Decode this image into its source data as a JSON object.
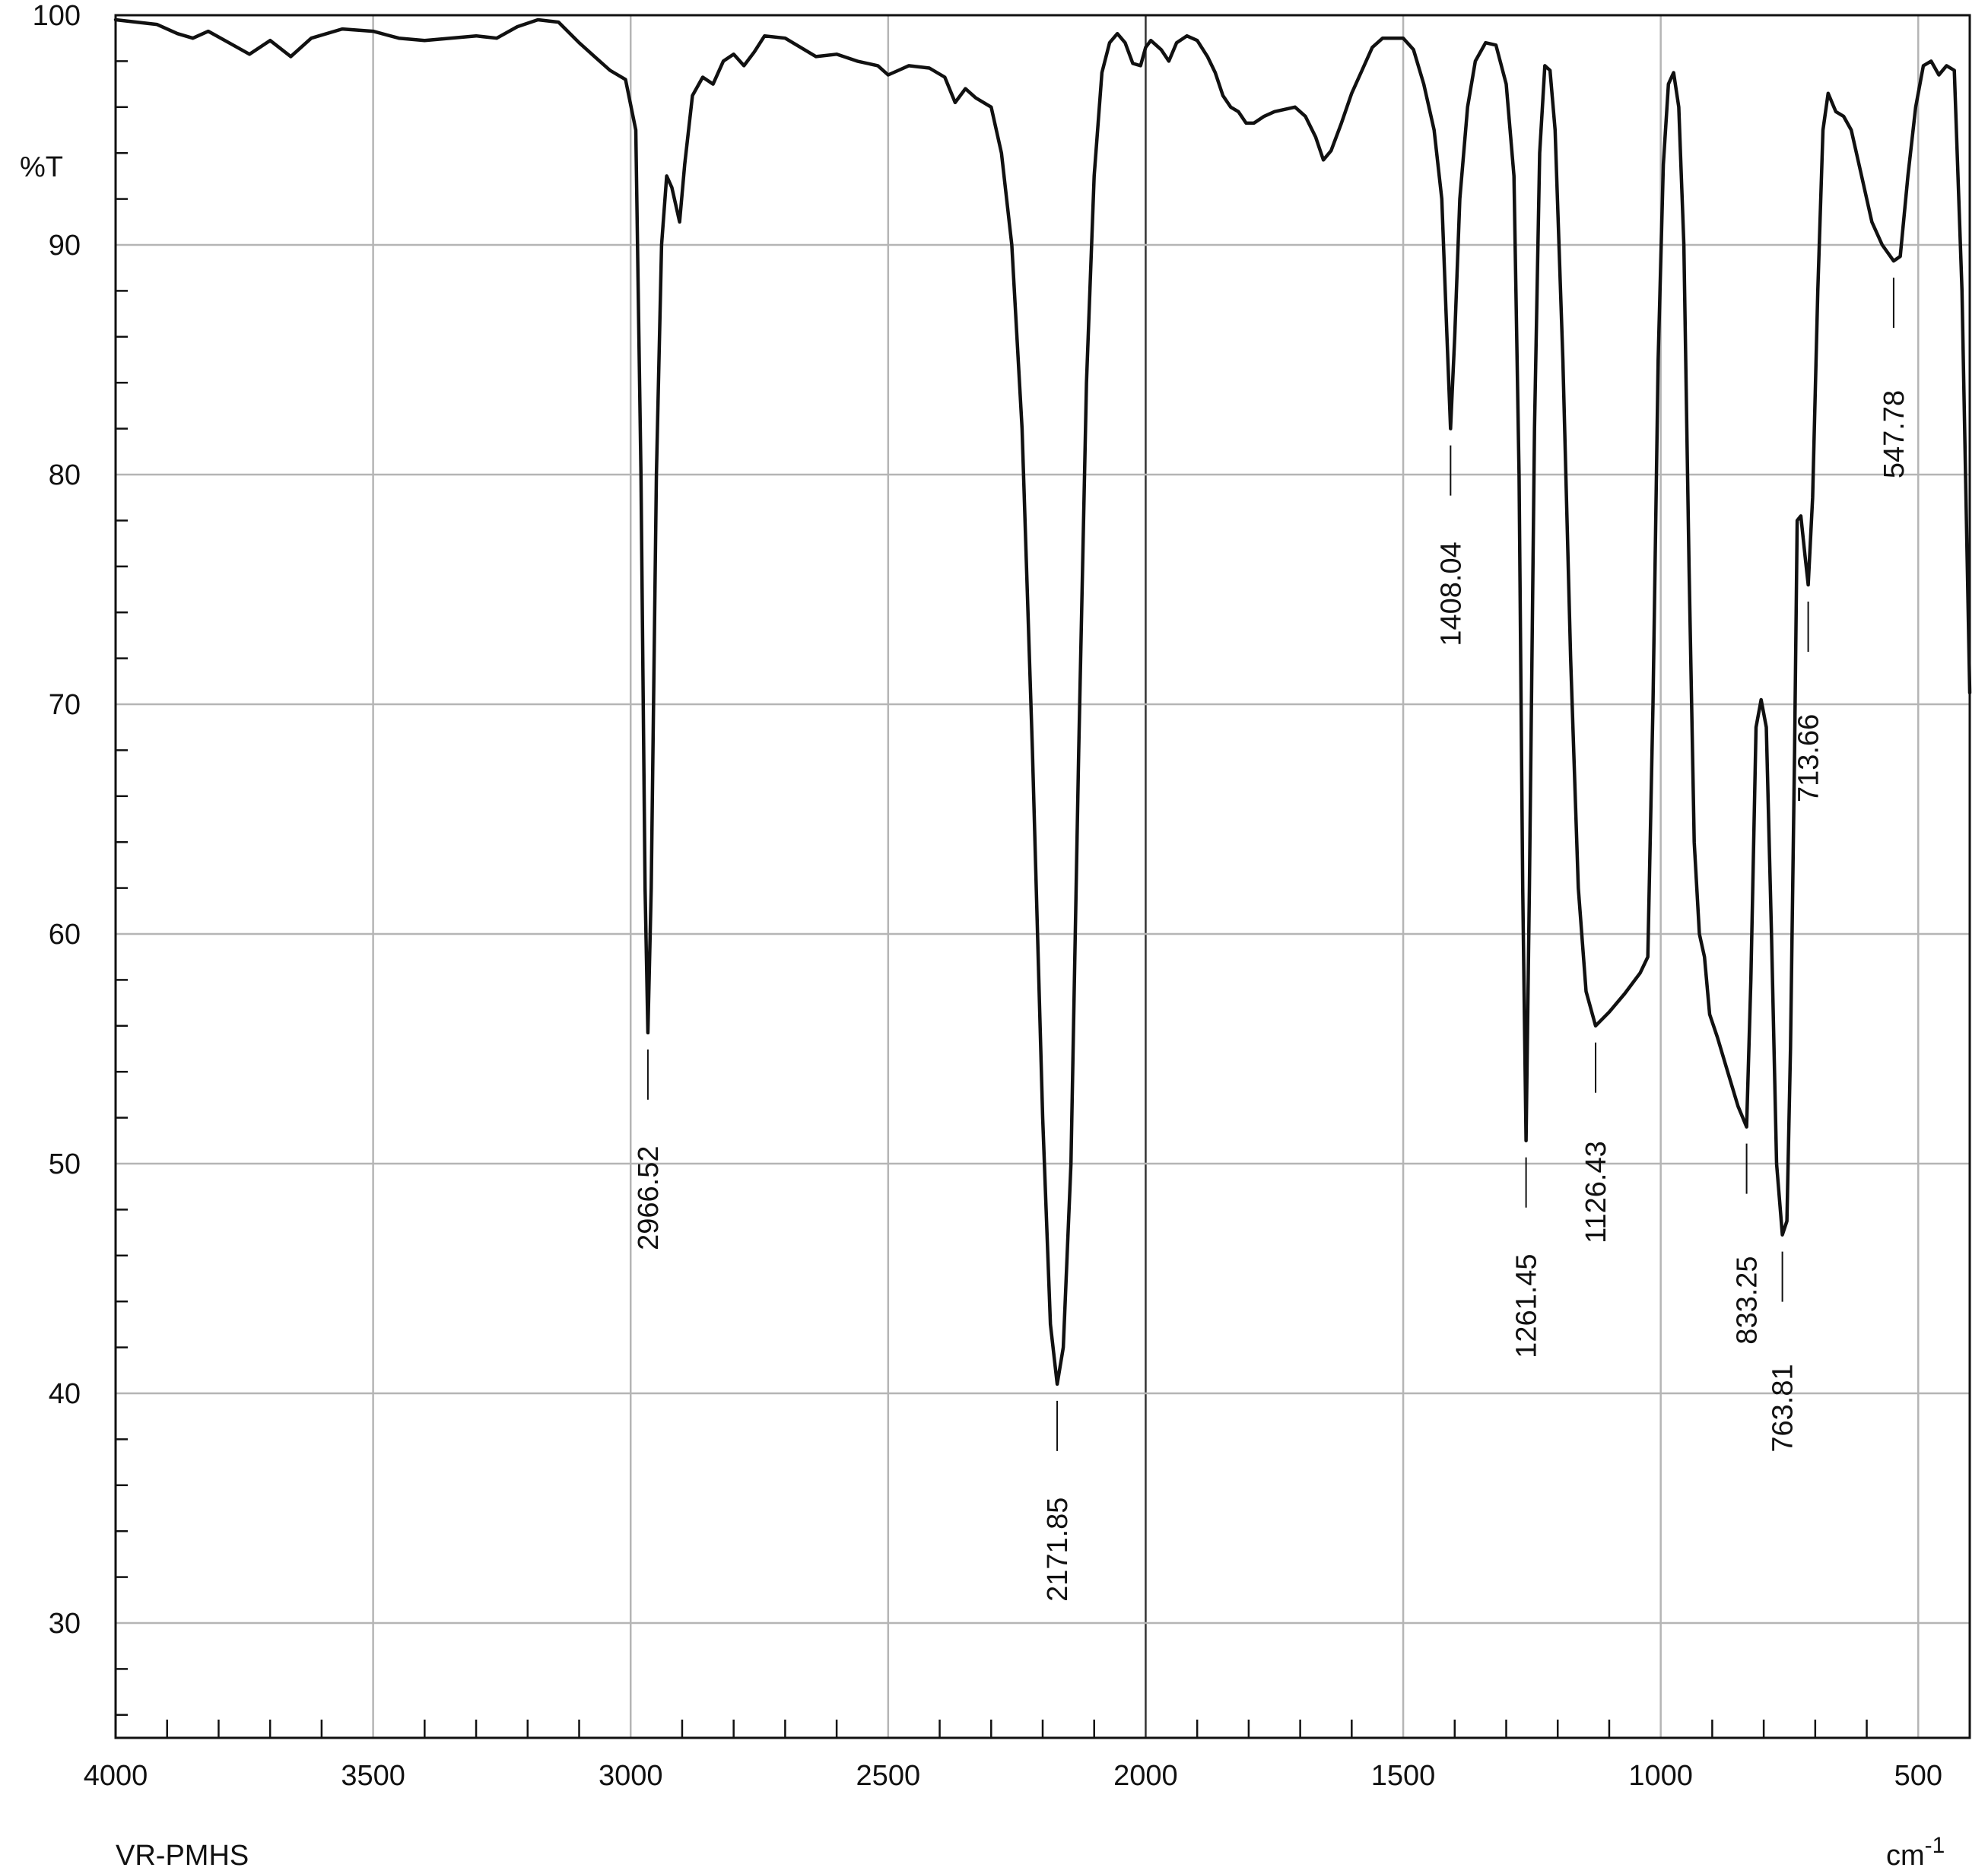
{
  "chart_data": {
    "type": "line",
    "title": "",
    "sample_label": "VR-PMHS",
    "ylabel": "%T",
    "xlabel": "cm-1",
    "x_unit_base": "cm",
    "x_unit_exp": "-1",
    "x_reversed": true,
    "xlim": [
      4000,
      400
    ],
    "ylim": [
      25,
      100
    ],
    "x_ticks": [
      4000,
      3500,
      3000,
      2500,
      2000,
      1500,
      1000,
      500
    ],
    "y_ticks": [
      30,
      40,
      50,
      60,
      70,
      80,
      90,
      100
    ],
    "grid": true,
    "colors": {
      "trace": "#111111",
      "grid": "#b5b5b5",
      "frame": "#111111"
    },
    "series": [
      {
        "name": "",
        "points": [
          [
            4000,
            99.8
          ],
          [
            3920,
            99.6
          ],
          [
            3880,
            99.2
          ],
          [
            3850,
            99.0
          ],
          [
            3820,
            99.3
          ],
          [
            3780,
            98.8
          ],
          [
            3740,
            98.3
          ],
          [
            3700,
            98.9
          ],
          [
            3660,
            98.2
          ],
          [
            3620,
            99.0
          ],
          [
            3560,
            99.4
          ],
          [
            3500,
            99.3
          ],
          [
            3450,
            99.0
          ],
          [
            3400,
            98.9
          ],
          [
            3350,
            99.0
          ],
          [
            3300,
            99.1
          ],
          [
            3260,
            99.0
          ],
          [
            3220,
            99.5
          ],
          [
            3180,
            99.8
          ],
          [
            3140,
            99.7
          ],
          [
            3100,
            98.8
          ],
          [
            3070,
            98.2
          ],
          [
            3040,
            97.6
          ],
          [
            3010,
            97.2
          ],
          [
            2990,
            95.0
          ],
          [
            2980,
            80.0
          ],
          [
            2972,
            62.0
          ],
          [
            2966.52,
            55.7
          ],
          [
            2960,
            62.0
          ],
          [
            2950,
            80.0
          ],
          [
            2940,
            90.0
          ],
          [
            2930,
            93.0
          ],
          [
            2920,
            92.5
          ],
          [
            2905,
            91.0
          ],
          [
            2895,
            93.5
          ],
          [
            2880,
            96.5
          ],
          [
            2860,
            97.3
          ],
          [
            2840,
            97.0
          ],
          [
            2820,
            98.0
          ],
          [
            2800,
            98.3
          ],
          [
            2780,
            97.8
          ],
          [
            2760,
            98.4
          ],
          [
            2740,
            99.1
          ],
          [
            2700,
            99.0
          ],
          [
            2670,
            98.6
          ],
          [
            2640,
            98.2
          ],
          [
            2600,
            98.3
          ],
          [
            2560,
            98.0
          ],
          [
            2520,
            97.8
          ],
          [
            2500,
            97.4
          ],
          [
            2480,
            97.6
          ],
          [
            2460,
            97.8
          ],
          [
            2420,
            97.7
          ],
          [
            2390,
            97.3
          ],
          [
            2370,
            96.2
          ],
          [
            2350,
            96.8
          ],
          [
            2330,
            96.4
          ],
          [
            2300,
            96.0
          ],
          [
            2280,
            94.0
          ],
          [
            2260,
            90.0
          ],
          [
            2240,
            82.0
          ],
          [
            2220,
            68.0
          ],
          [
            2200,
            52.0
          ],
          [
            2185,
            43.0
          ],
          [
            2171.85,
            40.4
          ],
          [
            2160,
            42.0
          ],
          [
            2145,
            50.0
          ],
          [
            2130,
            68.0
          ],
          [
            2115,
            84.0
          ],
          [
            2100,
            93.0
          ],
          [
            2085,
            97.5
          ],
          [
            2070,
            98.8
          ],
          [
            2055,
            99.2
          ],
          [
            2040,
            98.8
          ],
          [
            2025,
            97.9
          ],
          [
            2010,
            97.8
          ],
          [
            2000,
            98.6
          ],
          [
            1990,
            98.9
          ],
          [
            1970,
            98.5
          ],
          [
            1955,
            98.0
          ],
          [
            1940,
            98.8
          ],
          [
            1920,
            99.1
          ],
          [
            1900,
            98.9
          ],
          [
            1880,
            98.2
          ],
          [
            1865,
            97.5
          ],
          [
            1850,
            96.5
          ],
          [
            1835,
            96.0
          ],
          [
            1820,
            95.8
          ],
          [
            1805,
            95.3
          ],
          [
            1790,
            95.3
          ],
          [
            1770,
            95.6
          ],
          [
            1750,
            95.8
          ],
          [
            1730,
            95.9
          ],
          [
            1710,
            96.0
          ],
          [
            1690,
            95.6
          ],
          [
            1670,
            94.7
          ],
          [
            1655,
            93.7
          ],
          [
            1640,
            94.1
          ],
          [
            1620,
            95.3
          ],
          [
            1600,
            96.6
          ],
          [
            1580,
            97.6
          ],
          [
            1560,
            98.6
          ],
          [
            1540,
            99.0
          ],
          [
            1520,
            99.0
          ],
          [
            1500,
            99.0
          ],
          [
            1480,
            98.5
          ],
          [
            1460,
            97.0
          ],
          [
            1440,
            95.0
          ],
          [
            1425,
            92.0
          ],
          [
            1415,
            86.0
          ],
          [
            1408.04,
            82.0
          ],
          [
            1400,
            86.0
          ],
          [
            1390,
            92.0
          ],
          [
            1375,
            96.0
          ],
          [
            1360,
            98.0
          ],
          [
            1340,
            98.8
          ],
          [
            1320,
            98.7
          ],
          [
            1300,
            97.0
          ],
          [
            1285,
            93.0
          ],
          [
            1275,
            80.0
          ],
          [
            1268,
            62.0
          ],
          [
            1261.45,
            51.0
          ],
          [
            1255,
            62.0
          ],
          [
            1245,
            82.0
          ],
          [
            1235,
            94.0
          ],
          [
            1225,
            97.8
          ],
          [
            1215,
            97.6
          ],
          [
            1205,
            95.0
          ],
          [
            1190,
            85.0
          ],
          [
            1175,
            72.0
          ],
          [
            1160,
            62.0
          ],
          [
            1145,
            57.5
          ],
          [
            1126.43,
            56.0
          ],
          [
            1100,
            56.6
          ],
          [
            1070,
            57.4
          ],
          [
            1040,
            58.3
          ],
          [
            1025,
            59.0
          ],
          [
            1015,
            70.0
          ],
          [
            1005,
            85.0
          ],
          [
            995,
            93.5
          ],
          [
            985,
            97.0
          ],
          [
            975,
            97.5
          ],
          [
            965,
            96.0
          ],
          [
            955,
            90.0
          ],
          [
            945,
            76.0
          ],
          [
            935,
            64.0
          ],
          [
            925,
            60.0
          ],
          [
            915,
            59.0
          ],
          [
            905,
            56.5
          ],
          [
            890,
            55.5
          ],
          [
            870,
            54.0
          ],
          [
            850,
            52.5
          ],
          [
            833.25,
            51.6
          ],
          [
            825,
            58.0
          ],
          [
            815,
            69.0
          ],
          [
            805,
            70.2
          ],
          [
            795,
            69.0
          ],
          [
            785,
            60.0
          ],
          [
            775,
            50.0
          ],
          [
            763.81,
            46.9
          ],
          [
            755,
            47.5
          ],
          [
            748,
            55.0
          ],
          [
            740,
            68.0
          ],
          [
            735,
            78.0
          ],
          [
            728,
            78.2
          ],
          [
            720,
            76.5
          ],
          [
            713.66,
            75.2
          ],
          [
            705,
            79.0
          ],
          [
            695,
            88.0
          ],
          [
            685,
            95.0
          ],
          [
            675,
            96.6
          ],
          [
            660,
            95.8
          ],
          [
            645,
            95.6
          ],
          [
            630,
            95.0
          ],
          [
            610,
            93.0
          ],
          [
            590,
            91.0
          ],
          [
            570,
            90.0
          ],
          [
            547.78,
            89.3
          ],
          [
            535,
            89.5
          ],
          [
            520,
            93.0
          ],
          [
            505,
            96.0
          ],
          [
            490,
            97.8
          ],
          [
            475,
            98.0
          ],
          [
            460,
            97.4
          ],
          [
            445,
            97.8
          ],
          [
            430,
            97.6
          ],
          [
            415,
            88.0
          ],
          [
            400,
            70.5
          ]
        ]
      }
    ],
    "peak_labels": [
      {
        "x": 2966.52,
        "y": 55.7,
        "label": "2966.52"
      },
      {
        "x": 2171.85,
        "y": 40.4,
        "label": "2171.85"
      },
      {
        "x": 1408.04,
        "y": 82.0,
        "label": "1408.04"
      },
      {
        "x": 1261.45,
        "y": 51.0,
        "label": "1261.45"
      },
      {
        "x": 1126.43,
        "y": 56.0,
        "label": "1126.43"
      },
      {
        "x": 833.25,
        "y": 51.6,
        "label": "833.25"
      },
      {
        "x": 763.81,
        "y": 46.9,
        "label": "763.81"
      },
      {
        "x": 713.66,
        "y": 75.2,
        "label": "713.66"
      },
      {
        "x": 547.78,
        "y": 89.3,
        "label": "547.78"
      }
    ]
  }
}
